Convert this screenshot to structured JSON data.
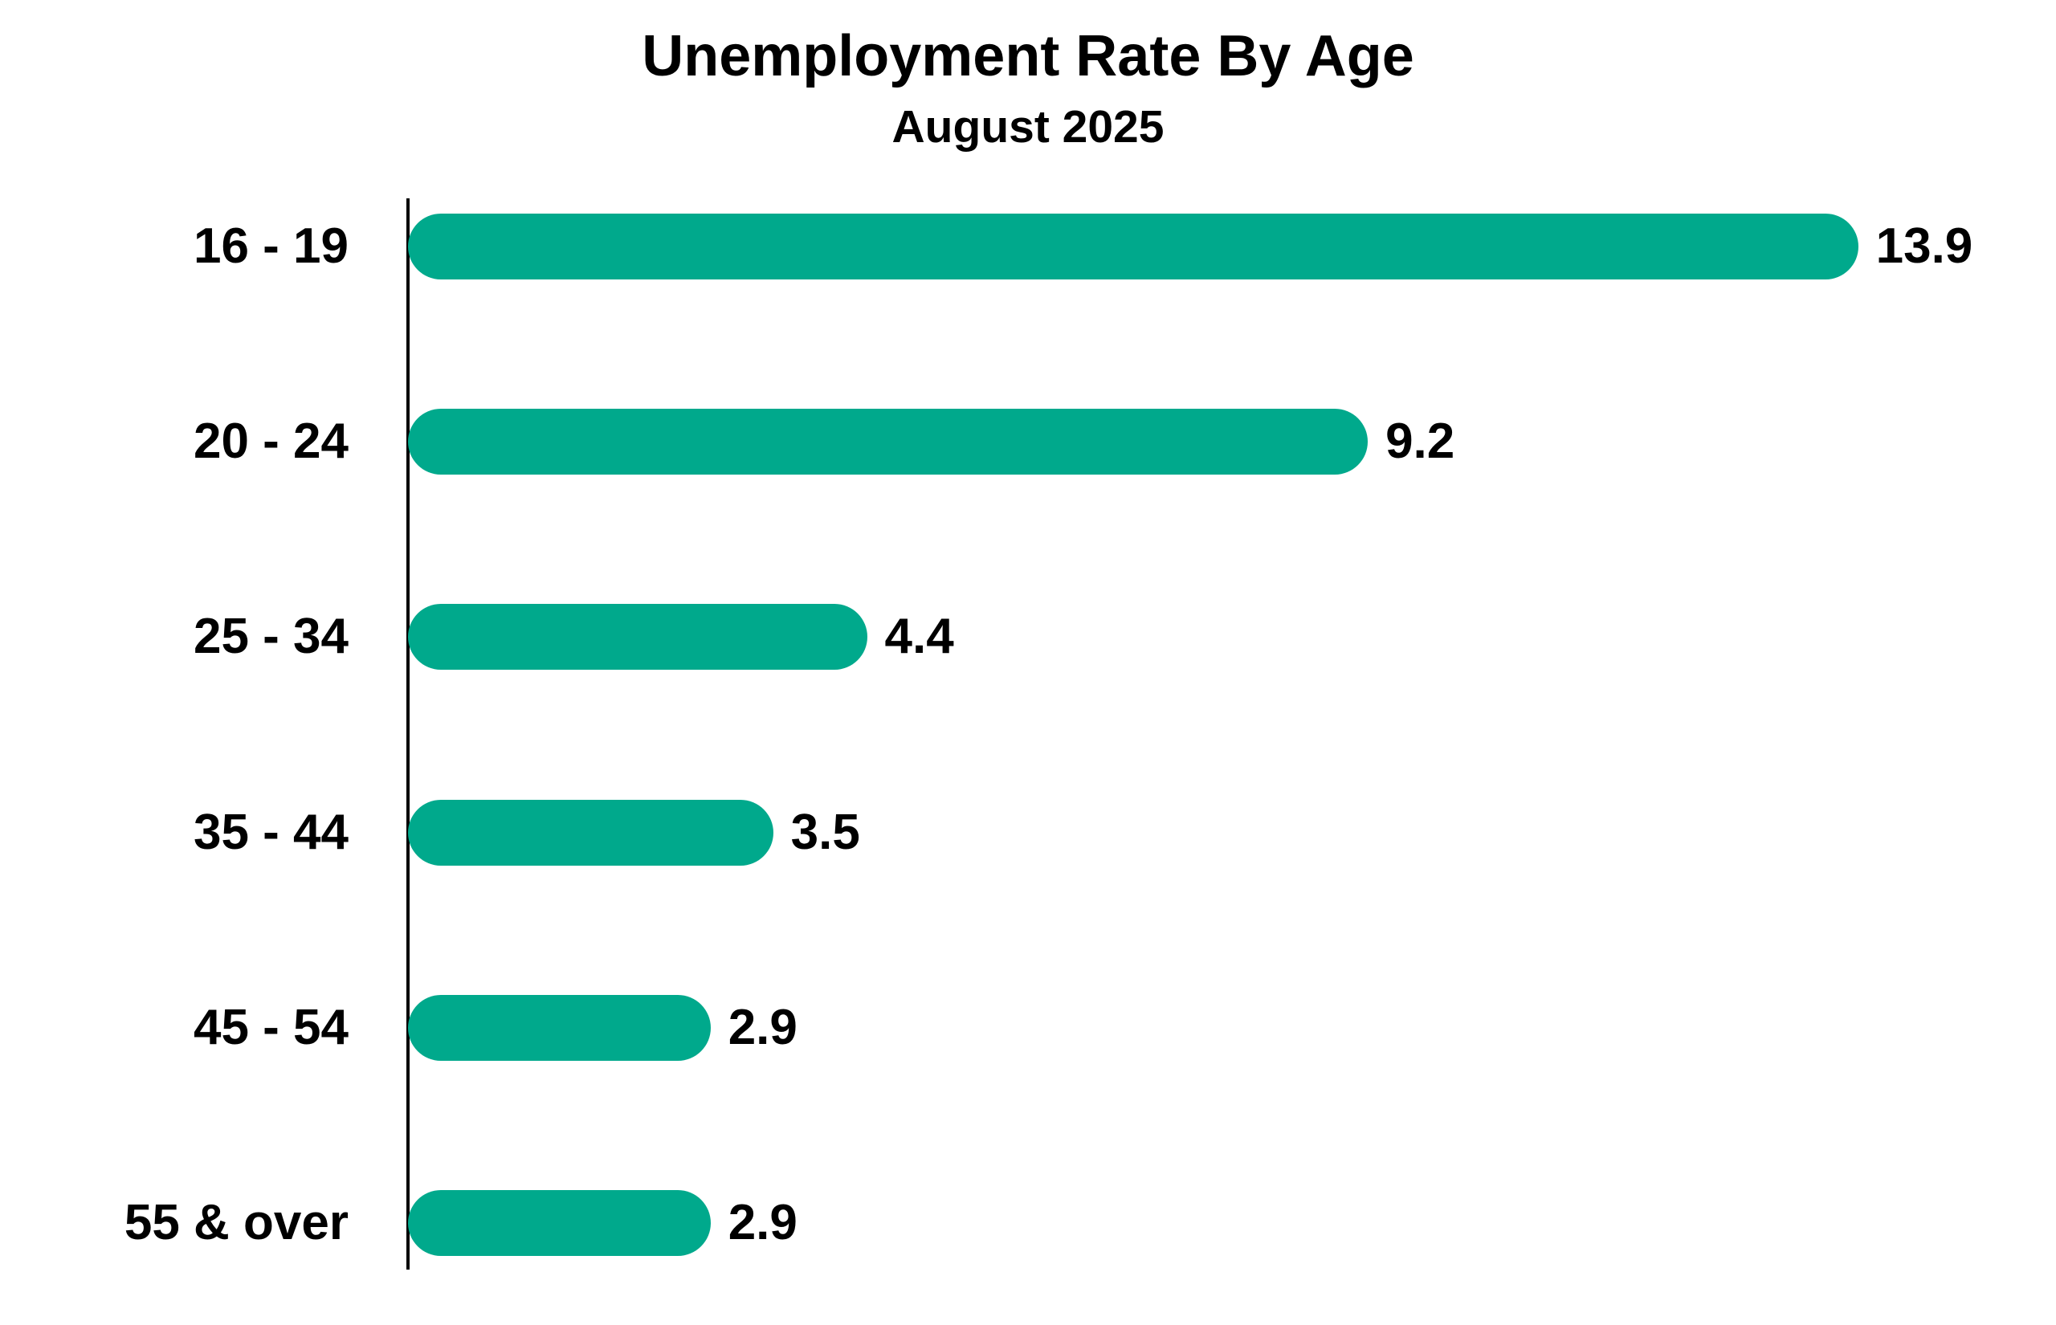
{
  "header": {
    "title": "Unemployment Rate By Age",
    "subtitle": "August 2025"
  },
  "chart_data": {
    "type": "bar",
    "orientation": "horizontal",
    "title": "Unemployment Rate By Age",
    "subtitle": "August 2025",
    "categories": [
      "16 - 19",
      "20 - 24",
      "25 - 34",
      "35 - 44",
      "45 - 54",
      "55 & over"
    ],
    "values": [
      13.9,
      9.2,
      4.4,
      3.5,
      2.9,
      2.9
    ],
    "value_labels": [
      "13.9",
      "9.2",
      "4.4",
      "3.5",
      "2.9",
      "2.9"
    ],
    "xlabel": "",
    "ylabel": "",
    "x_range": [
      0,
      15.8
    ],
    "grid": false,
    "legend": false,
    "bar_color": "#00a98c",
    "axis_color": "#000000",
    "text_color": "#000000"
  }
}
